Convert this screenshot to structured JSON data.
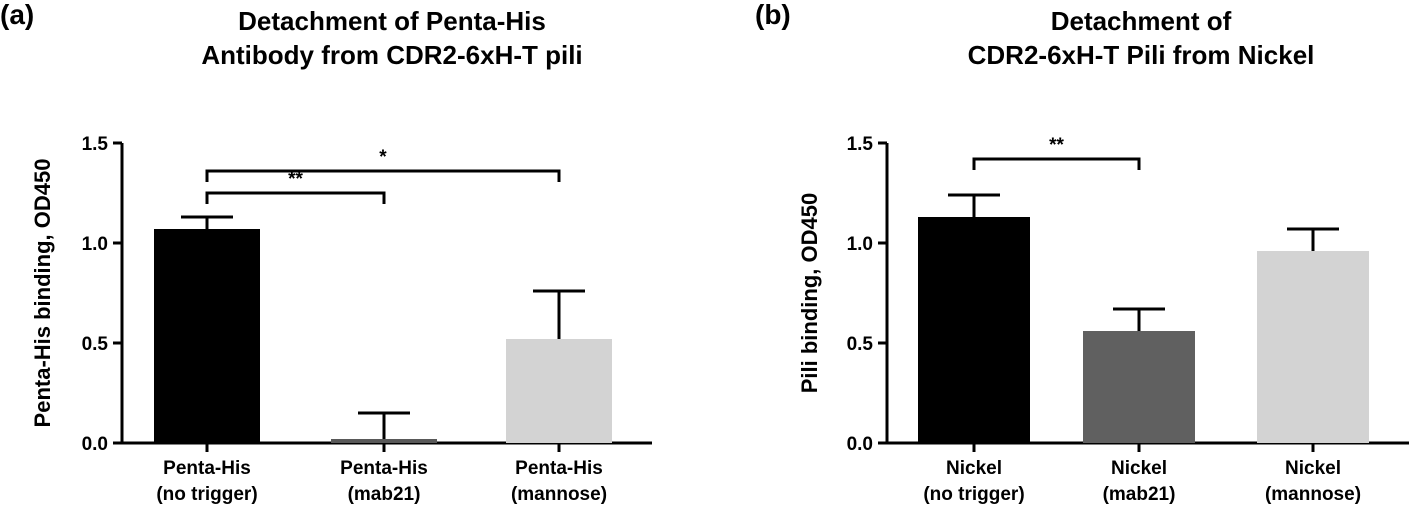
{
  "chart_data": [
    {
      "type": "bar",
      "panel_label": "(a)",
      "title_lines": [
        "Detachment of Penta-His",
        "Antibody from CDR2-6xH-T pili"
      ],
      "xlabel": "",
      "ylabel": "Penta-His binding, OD450",
      "ylim": [
        0,
        1.5
      ],
      "yticks": [
        0.0,
        0.5,
        1.0,
        1.5
      ],
      "ytick_labels": [
        "0.0",
        "0.5",
        "1.0",
        "1.5"
      ],
      "categories": [
        [
          "Penta-His",
          "(no trigger)"
        ],
        [
          "Penta-His",
          "(mab21)"
        ],
        [
          "Penta-His",
          "(mannose)"
        ]
      ],
      "values": [
        1.07,
        0.02,
        0.52
      ],
      "errors": [
        0.06,
        0.13,
        0.24
      ],
      "colors": [
        "#000000",
        "#595959",
        "#d3d3d3"
      ],
      "significance": [
        {
          "from": 0,
          "to": 2,
          "label": "*"
        },
        {
          "from": 0,
          "to": 1,
          "label": "**"
        }
      ]
    },
    {
      "type": "bar",
      "panel_label": "(b)",
      "title_lines": [
        "Detachment of",
        "CDR2-6xH-T Pili from Nickel"
      ],
      "xlabel": "",
      "ylabel": "Pili binding, OD450",
      "ylim": [
        0,
        1.5
      ],
      "yticks": [
        0.0,
        0.5,
        1.0,
        1.5
      ],
      "ytick_labels": [
        "0.0",
        "0.5",
        "1.0",
        "1.5"
      ],
      "categories": [
        [
          "Nickel",
          "(no trigger)"
        ],
        [
          "Nickel",
          "(mab21)"
        ],
        [
          "Nickel",
          "(mannose)"
        ]
      ],
      "values": [
        1.13,
        0.56,
        0.96
      ],
      "errors": [
        0.11,
        0.11,
        0.11
      ],
      "colors": [
        "#000000",
        "#606060",
        "#d3d3d3"
      ],
      "significance": [
        {
          "from": 0,
          "to": 1,
          "label": "**"
        }
      ]
    }
  ]
}
